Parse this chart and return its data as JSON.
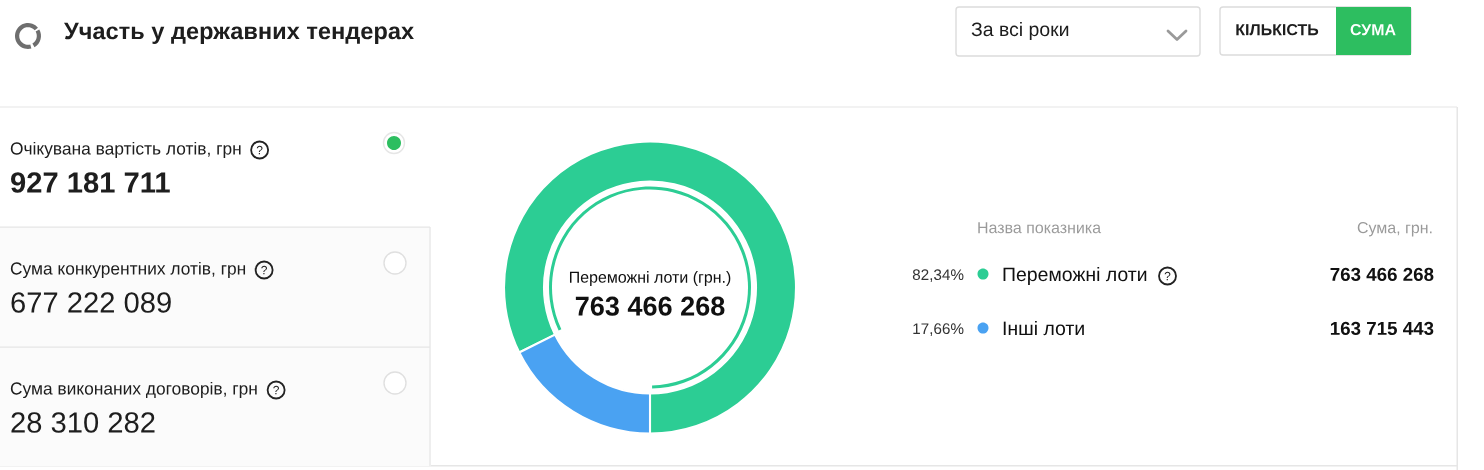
{
  "chart_data": [
    {
      "type": "other",
      "title": "Участь у державних тендерах",
      "annotations": [
        "За всі роки",
        "КІЛЬКІСТЬ",
        "СУМА"
      ],
      "categories": [
        "Очікувана вартість лотів, грн",
        "Сума конкурентних лотів, грн",
        "Сума виконаних договорів, грн"
      ],
      "values": [
        927181711,
        677222089,
        28310282
      ],
      "value_labels": [
        "927 181 711",
        "677 222 089",
        "28 310 282"
      ]
    },
    {
      "type": "donut",
      "categories": [
        "Переможні лоти",
        "Інші лоти"
      ],
      "values": [
        763466268,
        163715443
      ],
      "colors": [
        "#2ccd94",
        "#4aa2f2"
      ],
      "value_labels": [
        "763 466 268",
        "163 715 443"
      ],
      "legend": "right",
      "legend_title": "Назва показника",
      "annotations": [
        "Переможні лоти (грн.)",
        "763 466 268",
        "82,34%",
        "17,66%",
        "Сума, грн."
      ]
    }
  ]
}
